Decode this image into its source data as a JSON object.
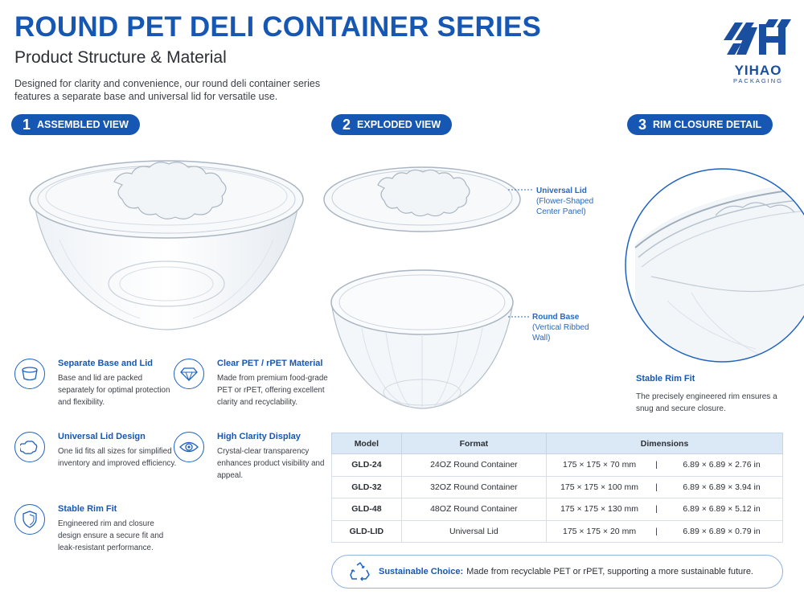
{
  "header": {
    "title": "ROUND PET DELI CONTAINER SERIES",
    "subtitle": "Product Structure & Material",
    "intro": "Designed for clarity and convenience, our round deli container series features a separate base and universal lid for versatile use."
  },
  "logo": {
    "name": "YIHAO",
    "sub": "PACKAGING"
  },
  "sections": [
    {
      "num": "1",
      "label": "ASSEMBLED VIEW"
    },
    {
      "num": "2",
      "label": "EXPLODED VIEW"
    },
    {
      "num": "3",
      "label": "RIM CLOSURE DETAIL"
    }
  ],
  "callouts": {
    "lid": {
      "title": "Universal Lid",
      "line1": "(Flower-Shaped",
      "line2": "Center Panel)"
    },
    "base": {
      "title": "Round Base",
      "line1": "(Vertical Ribbed",
      "line2": "Wall)"
    }
  },
  "features": [
    {
      "icon": "cup-icon",
      "title": "Separate Base and Lid",
      "desc": "Base and lid are packed separately for optimal protection and flexibility."
    },
    {
      "icon": "diamond-icon",
      "title": "Clear PET / rPET Material",
      "desc": "Made from premium food-grade PET or rPET, offering excellent clarity and recyclability."
    },
    {
      "icon": "flower-lid-icon",
      "title": "Universal Lid Design",
      "desc": "One lid fits all sizes for simplified inventory and improved efficiency."
    },
    {
      "icon": "eye-icon",
      "title": "High Clarity Display",
      "desc": "Crystal-clear transparency enhances product visibility and appeal."
    },
    {
      "icon": "shield-icon",
      "title": "Stable Rim Fit",
      "desc": "Engineered rim and closure design ensure a secure fit and leak-resistant performance."
    }
  ],
  "rim_detail": {
    "title": "Stable Rim Fit",
    "desc": "The precisely engineered rim ensures a snug and secure closure."
  },
  "table": {
    "headers": [
      "Model",
      "Format",
      "Dimensions"
    ],
    "rows": [
      {
        "model": "GLD-24",
        "format": "24OZ Round Container",
        "mm": "175 × 175 × 70 mm",
        "sep": "|",
        "inch": "6.89 × 6.89 × 2.76 in"
      },
      {
        "model": "GLD-32",
        "format": "32OZ Round Container",
        "mm": "175 × 175 × 100 mm",
        "sep": "|",
        "inch": "6.89 × 6.89 × 3.94 in"
      },
      {
        "model": "GLD-48",
        "format": "48OZ Round Container",
        "mm": "175 × 175 × 130 mm",
        "sep": "|",
        "inch": "6.89 × 6.89 × 5.12 in"
      },
      {
        "model": "GLD-LID",
        "format": "Universal Lid",
        "mm": "175 × 175 × 20 mm",
        "sep": "|",
        "inch": "6.89 × 6.89 × 0.79 in"
      }
    ]
  },
  "banner": {
    "label": "Sustainable Choice:",
    "text": "Made from recyclable PET or rPET, supporting a more sustainable future."
  },
  "colors": {
    "brand": "#1657b4",
    "table_header": "#dbe8f6",
    "text": "#2b2f36"
  }
}
